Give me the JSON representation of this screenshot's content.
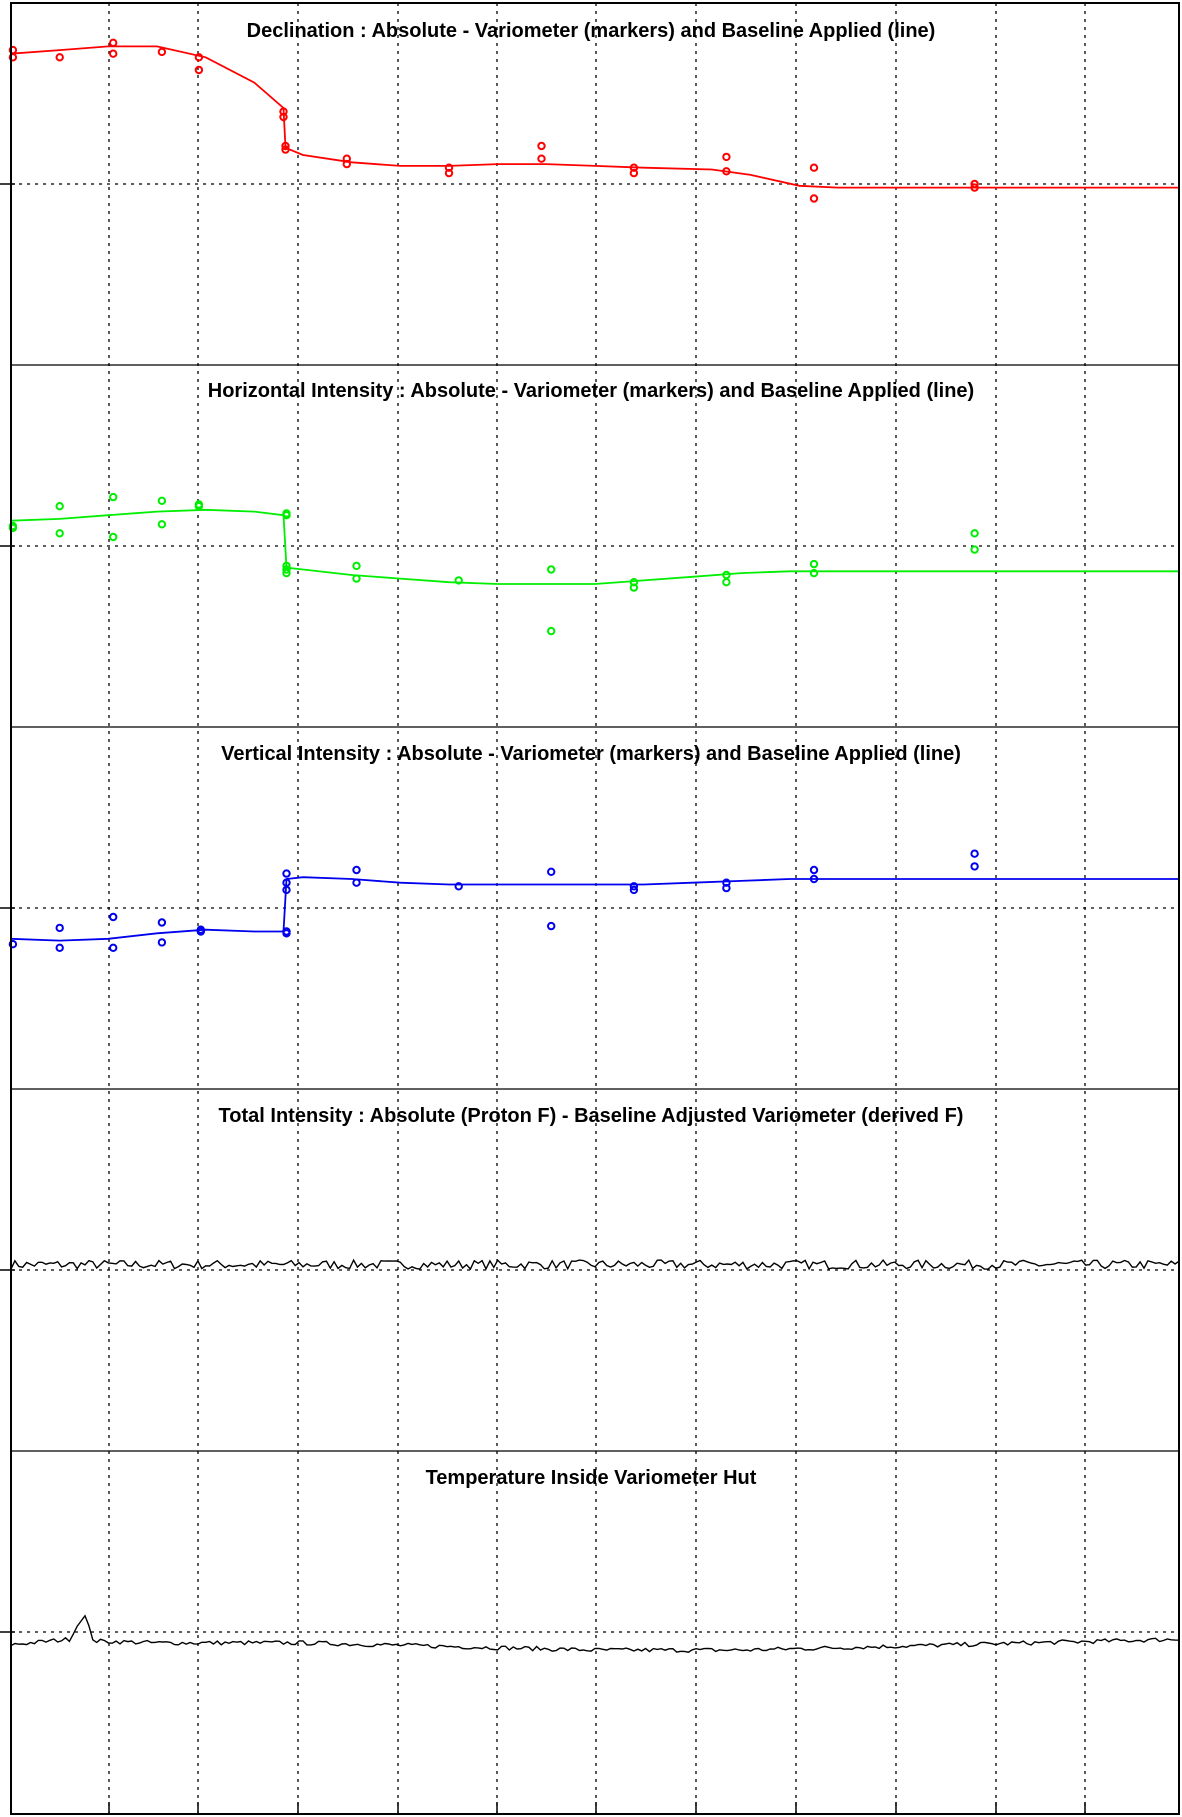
{
  "chart_data": [
    {
      "type": "scatter",
      "title": "Declination : Absolute - Variometer (markers) and Baseline Applied (line)",
      "color": "#ff0000",
      "xlim": [
        0,
        12
      ],
      "ylim": [
        -1,
        1
      ],
      "baseline": [
        [
          0,
          0.72
        ],
        [
          0.5,
          0.74
        ],
        [
          1,
          0.76
        ],
        [
          1.5,
          0.76
        ],
        [
          2,
          0.7
        ],
        [
          2.5,
          0.56
        ],
        [
          2.8,
          0.42
        ],
        [
          2.82,
          0.2
        ],
        [
          3,
          0.16
        ],
        [
          3.5,
          0.12
        ],
        [
          4,
          0.1
        ],
        [
          4.5,
          0.1
        ],
        [
          5,
          0.11
        ],
        [
          5.5,
          0.11
        ],
        [
          6,
          0.1
        ],
        [
          6.5,
          0.09
        ],
        [
          7.2,
          0.08
        ],
        [
          7.6,
          0.05
        ],
        [
          8.1,
          -0.01
        ],
        [
          8.5,
          -0.02
        ],
        [
          12,
          -0.02
        ]
      ],
      "markers": [
        [
          0.02,
          0.74
        ],
        [
          0.02,
          0.7
        ],
        [
          0.5,
          0.7
        ],
        [
          1.05,
          0.78
        ],
        [
          1.05,
          0.72
        ],
        [
          1.55,
          0.73
        ],
        [
          1.93,
          0.7
        ],
        [
          1.93,
          0.63
        ],
        [
          2.8,
          0.4
        ],
        [
          2.8,
          0.37
        ],
        [
          2.82,
          0.21
        ],
        [
          2.82,
          0.19
        ],
        [
          3.45,
          0.14
        ],
        [
          3.45,
          0.11
        ],
        [
          4.5,
          0.06
        ],
        [
          4.5,
          0.09
        ],
        [
          5.45,
          0.21
        ],
        [
          5.45,
          0.14
        ],
        [
          6.4,
          0.09
        ],
        [
          6.4,
          0.06
        ],
        [
          7.35,
          0.15
        ],
        [
          7.35,
          0.07
        ],
        [
          8.25,
          0.09
        ],
        [
          8.25,
          -0.08
        ],
        [
          9.9,
          0
        ],
        [
          9.9,
          -0.02
        ]
      ]
    },
    {
      "type": "scatter",
      "title": "Horizontal Intensity : Absolute - Variometer (markers) and Baseline Applied (line)",
      "color": "#00ee00",
      "xlim": [
        0,
        12
      ],
      "ylim": [
        -1,
        1
      ],
      "baseline": [
        [
          0,
          0.14
        ],
        [
          0.5,
          0.15
        ],
        [
          1,
          0.17
        ],
        [
          1.5,
          0.19
        ],
        [
          2,
          0.2
        ],
        [
          2.5,
          0.19
        ],
        [
          2.8,
          0.17
        ],
        [
          2.83,
          -0.12
        ],
        [
          3,
          -0.13
        ],
        [
          3.5,
          -0.16
        ],
        [
          4,
          -0.18
        ],
        [
          4.5,
          -0.2
        ],
        [
          5,
          -0.21
        ],
        [
          5.5,
          -0.21
        ],
        [
          6,
          -0.21
        ],
        [
          6.5,
          -0.19
        ],
        [
          7,
          -0.17
        ],
        [
          7.5,
          -0.15
        ],
        [
          8,
          -0.14
        ],
        [
          8.5,
          -0.14
        ],
        [
          12,
          -0.14
        ]
      ],
      "markers": [
        [
          0.02,
          0.1
        ],
        [
          0.02,
          0.11
        ],
        [
          0.5,
          0.22
        ],
        [
          0.5,
          0.07
        ],
        [
          1.05,
          0.27
        ],
        [
          1.05,
          0.05
        ],
        [
          1.55,
          0.25
        ],
        [
          1.55,
          0.12
        ],
        [
          1.93,
          0.23
        ],
        [
          1.93,
          0.22
        ],
        [
          2.83,
          0.18
        ],
        [
          2.83,
          0.17
        ],
        [
          2.83,
          -0.11
        ],
        [
          2.83,
          -0.13
        ],
        [
          2.83,
          -0.15
        ],
        [
          3.55,
          -0.11
        ],
        [
          3.55,
          -0.18
        ],
        [
          4.6,
          -0.19
        ],
        [
          5.55,
          -0.13
        ],
        [
          5.55,
          -0.47
        ],
        [
          6.4,
          -0.2
        ],
        [
          6.4,
          -0.23
        ],
        [
          7.35,
          -0.16
        ],
        [
          7.35,
          -0.2
        ],
        [
          8.25,
          -0.1
        ],
        [
          8.25,
          -0.15
        ],
        [
          9.9,
          0.07
        ],
        [
          9.9,
          -0.02
        ]
      ]
    },
    {
      "type": "scatter",
      "title": "Vertical Intensity : Absolute - Variometer (markers) and Baseline Applied (line)",
      "color": "#0000ee",
      "xlim": [
        0,
        12
      ],
      "ylim": [
        -1,
        1
      ],
      "baseline": [
        [
          0,
          -0.17
        ],
        [
          0.5,
          -0.18
        ],
        [
          1,
          -0.17
        ],
        [
          1.5,
          -0.14
        ],
        [
          2,
          -0.12
        ],
        [
          2.5,
          -0.13
        ],
        [
          2.8,
          -0.13
        ],
        [
          2.83,
          0.16
        ],
        [
          3,
          0.17
        ],
        [
          3.5,
          0.16
        ],
        [
          4,
          0.14
        ],
        [
          4.5,
          0.13
        ],
        [
          5,
          0.13
        ],
        [
          5.5,
          0.13
        ],
        [
          6,
          0.13
        ],
        [
          6.5,
          0.13
        ],
        [
          7,
          0.14
        ],
        [
          7.5,
          0.15
        ],
        [
          8,
          0.16
        ],
        [
          8.5,
          0.16
        ],
        [
          12,
          0.16
        ]
      ],
      "markers": [
        [
          0.02,
          -0.2
        ],
        [
          0.5,
          -0.11
        ],
        [
          0.5,
          -0.22
        ],
        [
          1.05,
          -0.05
        ],
        [
          1.05,
          -0.22
        ],
        [
          1.55,
          -0.08
        ],
        [
          1.55,
          -0.19
        ],
        [
          1.95,
          -0.12
        ],
        [
          1.95,
          -0.13
        ],
        [
          2.83,
          -0.13
        ],
        [
          2.83,
          -0.14
        ],
        [
          2.83,
          0.19
        ],
        [
          2.83,
          0.14
        ],
        [
          2.83,
          0.1
        ],
        [
          3.55,
          0.21
        ],
        [
          3.55,
          0.14
        ],
        [
          4.6,
          0.12
        ],
        [
          5.55,
          0.2
        ],
        [
          5.55,
          -0.1
        ],
        [
          6.4,
          0.12
        ],
        [
          6.4,
          0.1
        ],
        [
          7.35,
          0.14
        ],
        [
          7.35,
          0.11
        ],
        [
          8.25,
          0.21
        ],
        [
          8.25,
          0.16
        ],
        [
          9.9,
          0.3
        ],
        [
          9.9,
          0.23
        ]
      ]
    },
    {
      "type": "line",
      "title": "Total Intensity : Absolute (Proton F) - Baseline Adjusted Variometer (derived F)",
      "color": "#000000",
      "xlim": [
        0,
        12
      ],
      "ylim": [
        -1,
        1
      ],
      "y_base": 0.03,
      "noise_amplitude": 0.025,
      "samples": 300
    },
    {
      "type": "line",
      "title": "Temperature Inside Variometer Hut",
      "color": "#000000",
      "xlim": [
        0,
        12
      ],
      "ylim": [
        -1,
        1
      ],
      "trend": [
        [
          0,
          -0.07
        ],
        [
          0.6,
          -0.04
        ],
        [
          0.75,
          0.1
        ],
        [
          0.85,
          -0.05
        ],
        [
          1.5,
          -0.06
        ],
        [
          3,
          -0.06
        ],
        [
          4.5,
          -0.08
        ],
        [
          6,
          -0.1
        ],
        [
          7.5,
          -0.1
        ],
        [
          9,
          -0.08
        ],
        [
          10.5,
          -0.06
        ],
        [
          12,
          -0.04
        ]
      ],
      "noise_amplitude": 0.012,
      "samples": 300
    }
  ]
}
